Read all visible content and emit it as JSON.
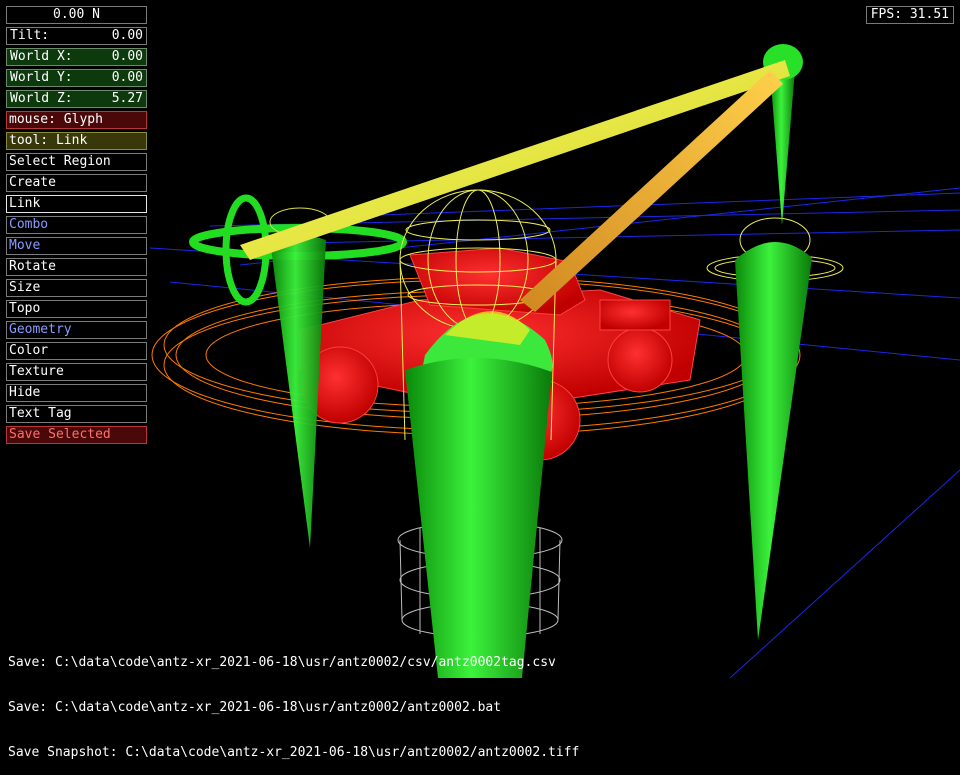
{
  "hud": {
    "force": "0.00 N",
    "tilt": {
      "label": "Tilt:",
      "value": "0.00"
    },
    "world_x": {
      "label": "World X:",
      "value": "0.00"
    },
    "world_y": {
      "label": "World Y:",
      "value": "0.00"
    },
    "world_z": {
      "label": "World Z:",
      "value": "5.27"
    },
    "mouse": "mouse: Glyph",
    "tool": "tool: Link",
    "menu": {
      "select_region": "Select Region",
      "create": "Create",
      "link": "Link",
      "combo": "Combo",
      "move": "Move",
      "rotate": "Rotate",
      "size": "Size",
      "topo": "Topo",
      "geometry": "Geometry",
      "color": "Color",
      "texture": "Texture",
      "hide": "Hide",
      "text_tag": "Text Tag",
      "save_selected": "Save Selected"
    }
  },
  "fps": "FPS: 31.51",
  "console": [
    "Save: C:\\data\\code\\antz-xr_2021-06-18\\usr/antz0002/csv/antz0002tag.csv",
    "Save: C:\\data\\code\\antz-xr_2021-06-18\\usr/antz0002/antz0002.bat",
    "Save Snapshot: C:\\data\\code\\antz-xr_2021-06-18\\usr/antz0002/antz0002.tiff"
  ],
  "colors": {
    "background": "#000000",
    "glyph_green": "#22dd22",
    "glyph_red": "#ee1111",
    "link_yellow": "#ffff33",
    "grid_blue": "#2233ff",
    "wire_orange": "#ff8800",
    "wire_yellow": "#ffff66"
  }
}
